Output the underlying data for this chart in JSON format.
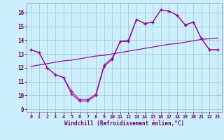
{
  "xlabel": "Windchill (Refroidissement éolien,°C)",
  "x_hours": [
    0,
    1,
    2,
    3,
    4,
    5,
    6,
    7,
    8,
    9,
    10,
    11,
    12,
    13,
    14,
    15,
    16,
    17,
    18,
    19,
    20,
    21,
    22,
    23
  ],
  "line1_y": [
    13.3,
    13.1,
    12.0,
    11.5,
    11.3,
    10.1,
    9.6,
    9.6,
    10.0,
    12.1,
    12.6,
    13.9,
    13.9,
    15.5,
    15.2,
    15.3,
    16.2,
    16.1,
    15.8,
    15.1,
    15.3,
    14.1,
    13.3,
    13.3
  ],
  "line2_y": [
    13.3,
    13.1,
    12.0,
    11.5,
    11.3,
    10.3,
    9.7,
    9.7,
    10.1,
    12.2,
    12.7,
    13.9,
    14.0,
    15.5,
    15.2,
    15.3,
    16.2,
    16.1,
    15.8,
    15.1,
    15.3,
    14.1,
    13.3,
    13.3
  ],
  "line3_y": [
    12.1,
    12.2,
    12.3,
    12.4,
    12.5,
    12.55,
    12.65,
    12.75,
    12.85,
    12.9,
    13.0,
    13.1,
    13.2,
    13.3,
    13.4,
    13.5,
    13.6,
    13.7,
    13.75,
    13.85,
    13.95,
    14.05,
    14.1,
    14.15
  ],
  "line_color": "#990099",
  "bg_color": "#cceeff",
  "grid_color": "#aacccc",
  "axis_color": "#660066",
  "tick_color": "#660066",
  "ylim": [
    8.8,
    16.7
  ],
  "yticks": [
    9,
    10,
    11,
    12,
    13,
    14,
    15,
    16
  ],
  "xlim": [
    -0.5,
    23.5
  ]
}
